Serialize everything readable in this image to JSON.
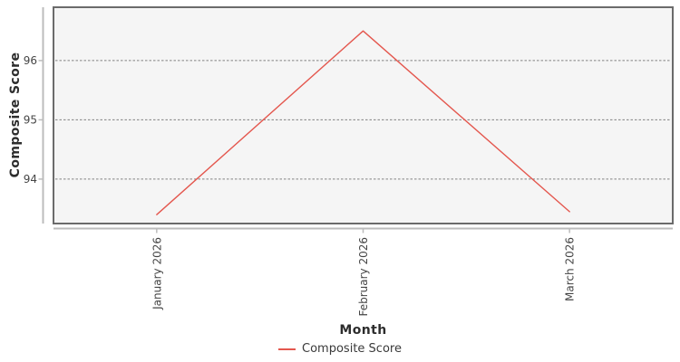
{
  "chart_data": {
    "type": "line",
    "title": "",
    "xlabel": "Month",
    "ylabel": "Composite Score",
    "categories": [
      "January 2026",
      "February 2026",
      "March 2026"
    ],
    "series": [
      {
        "name": "Composite Score",
        "values": [
          93.4,
          96.5,
          93.45
        ],
        "color": "#e4574e"
      }
    ],
    "ylim": [
      93.25,
      96.9
    ],
    "yticks": [
      94,
      95,
      96
    ],
    "grid": "horizontal-dashed",
    "legend_position": "bottom-center"
  },
  "legend": {
    "items": [
      {
        "label": "Composite Score",
        "color": "#e4574e"
      }
    ]
  },
  "style": {
    "background": "#ffffff",
    "plot_background": "#f5f5f5",
    "plot_border": "#6b6b6b",
    "gridline": "#666666",
    "axis_line": "#bcbcbc",
    "tick_label": "#454545",
    "axis_title": "#2d2d2d"
  }
}
